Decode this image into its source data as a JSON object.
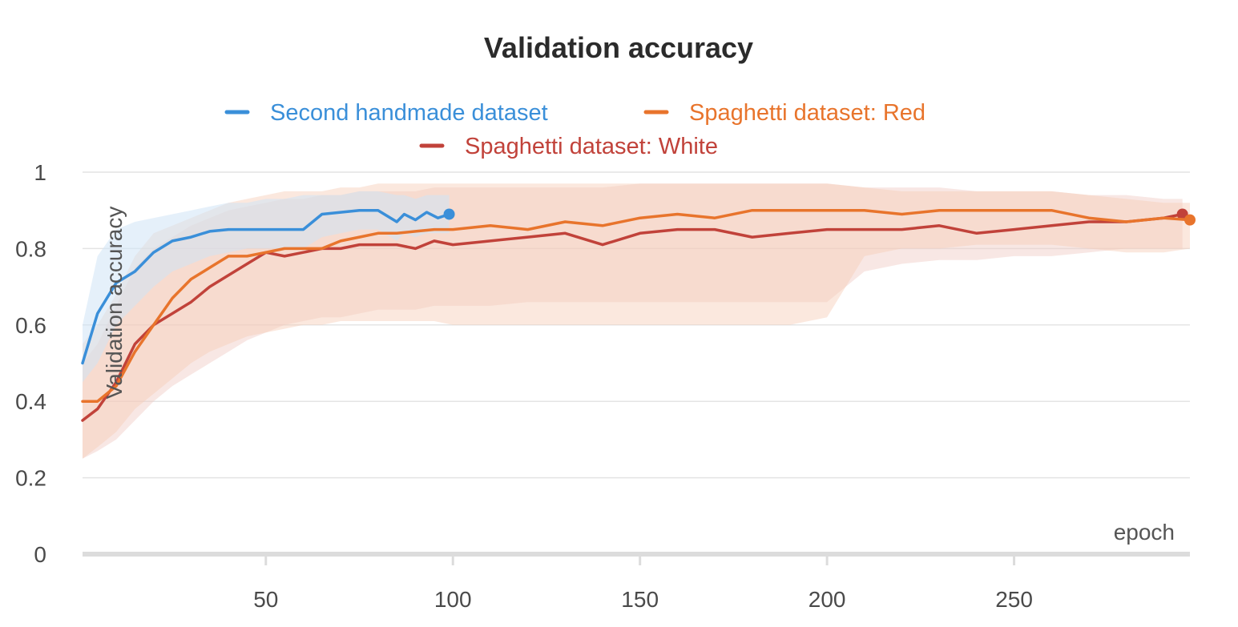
{
  "chart_data": {
    "type": "line",
    "title": "Validation accuracy",
    "xlabel": "epoch",
    "ylabel": "Validation accuracy",
    "xlim": [
      1,
      297
    ],
    "ylim": [
      0,
      1
    ],
    "xticks": [
      50,
      100,
      150,
      200,
      250
    ],
    "yticks": [
      0,
      0.2,
      0.4,
      0.6,
      0.8,
      1
    ],
    "ytick_labels": [
      "0",
      "0.2",
      "0.4",
      "0.6",
      "0.8",
      "1"
    ],
    "xtick_labels": [
      "50",
      "100",
      "150",
      "200",
      "250"
    ],
    "grid": "horizontal",
    "legend_position": "top",
    "series": [
      {
        "name": "Second handmade dataset",
        "color": "#3a8fd9",
        "band_color": "#cfe3f6",
        "end_marker": true,
        "x": [
          1,
          5,
          10,
          15,
          20,
          25,
          30,
          35,
          40,
          45,
          50,
          55,
          60,
          65,
          70,
          75,
          80,
          85,
          87,
          90,
          93,
          96,
          99
        ],
        "y": [
          0.5,
          0.63,
          0.71,
          0.74,
          0.79,
          0.82,
          0.83,
          0.845,
          0.85,
          0.85,
          0.85,
          0.85,
          0.85,
          0.89,
          0.895,
          0.9,
          0.9,
          0.87,
          0.89,
          0.875,
          0.895,
          0.88,
          0.89
        ],
        "band_upper": [
          0.6,
          0.78,
          0.85,
          0.87,
          0.88,
          0.89,
          0.9,
          0.91,
          0.92,
          0.92,
          0.93,
          0.93,
          0.94,
          0.94,
          0.94,
          0.95,
          0.95,
          0.94,
          0.94,
          0.93,
          0.94,
          0.94,
          0.94
        ],
        "band_lower": [
          0.45,
          0.5,
          0.6,
          0.65,
          0.7,
          0.74,
          0.76,
          0.78,
          0.79,
          0.8,
          0.8,
          0.8,
          0.8,
          0.83,
          0.84,
          0.85,
          0.85,
          0.82,
          0.84,
          0.83,
          0.84,
          0.84,
          0.84
        ]
      },
      {
        "name": "Spaghetti dataset: Red",
        "color": "#e8742c",
        "band_color": "#f6cdb6",
        "end_marker": true,
        "x": [
          1,
          5,
          10,
          15,
          20,
          25,
          30,
          35,
          40,
          45,
          50,
          55,
          60,
          65,
          70,
          75,
          80,
          85,
          90,
          95,
          100,
          110,
          120,
          130,
          140,
          150,
          160,
          170,
          180,
          190,
          200,
          210,
          220,
          230,
          240,
          250,
          260,
          270,
          280,
          290,
          297
        ],
        "y": [
          0.4,
          0.4,
          0.44,
          0.53,
          0.6,
          0.67,
          0.72,
          0.75,
          0.78,
          0.78,
          0.79,
          0.8,
          0.8,
          0.8,
          0.82,
          0.83,
          0.84,
          0.84,
          0.845,
          0.85,
          0.85,
          0.86,
          0.85,
          0.87,
          0.86,
          0.88,
          0.89,
          0.88,
          0.9,
          0.9,
          0.9,
          0.9,
          0.89,
          0.9,
          0.9,
          0.9,
          0.9,
          0.88,
          0.87,
          0.88,
          0.875
        ],
        "band_upper": [
          0.55,
          0.6,
          0.68,
          0.78,
          0.84,
          0.86,
          0.88,
          0.9,
          0.92,
          0.93,
          0.94,
          0.95,
          0.95,
          0.95,
          0.96,
          0.96,
          0.97,
          0.97,
          0.97,
          0.97,
          0.97,
          0.97,
          0.97,
          0.97,
          0.97,
          0.97,
          0.97,
          0.97,
          0.97,
          0.97,
          0.97,
          0.96,
          0.95,
          0.95,
          0.95,
          0.95,
          0.95,
          0.94,
          0.93,
          0.92,
          0.92
        ],
        "band_lower": [
          0.25,
          0.28,
          0.32,
          0.38,
          0.42,
          0.46,
          0.5,
          0.53,
          0.55,
          0.57,
          0.58,
          0.59,
          0.6,
          0.6,
          0.61,
          0.61,
          0.61,
          0.61,
          0.61,
          0.61,
          0.6,
          0.6,
          0.6,
          0.6,
          0.6,
          0.6,
          0.6,
          0.6,
          0.6,
          0.6,
          0.62,
          0.78,
          0.8,
          0.8,
          0.81,
          0.81,
          0.81,
          0.8,
          0.79,
          0.79,
          0.8
        ]
      },
      {
        "name": "Spaghetti dataset: White",
        "color": "#c1423a",
        "band_color": "#f0c9c4",
        "end_marker": true,
        "x": [
          1,
          5,
          10,
          15,
          20,
          25,
          30,
          35,
          40,
          45,
          50,
          55,
          60,
          65,
          70,
          75,
          80,
          85,
          90,
          95,
          100,
          110,
          120,
          130,
          140,
          150,
          160,
          170,
          180,
          190,
          200,
          210,
          220,
          230,
          240,
          250,
          260,
          270,
          280,
          290,
          295
        ],
        "y": [
          0.35,
          0.38,
          0.45,
          0.55,
          0.6,
          0.63,
          0.66,
          0.7,
          0.73,
          0.76,
          0.79,
          0.78,
          0.79,
          0.8,
          0.8,
          0.81,
          0.81,
          0.81,
          0.8,
          0.82,
          0.81,
          0.82,
          0.83,
          0.84,
          0.81,
          0.84,
          0.85,
          0.85,
          0.83,
          0.84,
          0.85,
          0.85,
          0.85,
          0.86,
          0.84,
          0.85,
          0.86,
          0.87,
          0.87,
          0.88,
          0.89
        ],
        "band_upper": [
          0.5,
          0.55,
          0.65,
          0.75,
          0.8,
          0.83,
          0.86,
          0.88,
          0.9,
          0.91,
          0.92,
          0.93,
          0.93,
          0.94,
          0.94,
          0.95,
          0.95,
          0.95,
          0.95,
          0.96,
          0.96,
          0.96,
          0.96,
          0.96,
          0.96,
          0.97,
          0.97,
          0.97,
          0.97,
          0.97,
          0.97,
          0.96,
          0.96,
          0.96,
          0.95,
          0.95,
          0.95,
          0.94,
          0.94,
          0.93,
          0.93
        ],
        "band_lower": [
          0.25,
          0.27,
          0.3,
          0.35,
          0.4,
          0.44,
          0.47,
          0.5,
          0.53,
          0.56,
          0.58,
          0.6,
          0.61,
          0.62,
          0.62,
          0.63,
          0.64,
          0.64,
          0.64,
          0.65,
          0.65,
          0.65,
          0.66,
          0.66,
          0.66,
          0.66,
          0.66,
          0.66,
          0.66,
          0.66,
          0.66,
          0.74,
          0.76,
          0.77,
          0.77,
          0.78,
          0.78,
          0.79,
          0.8,
          0.8,
          0.8
        ]
      }
    ]
  }
}
